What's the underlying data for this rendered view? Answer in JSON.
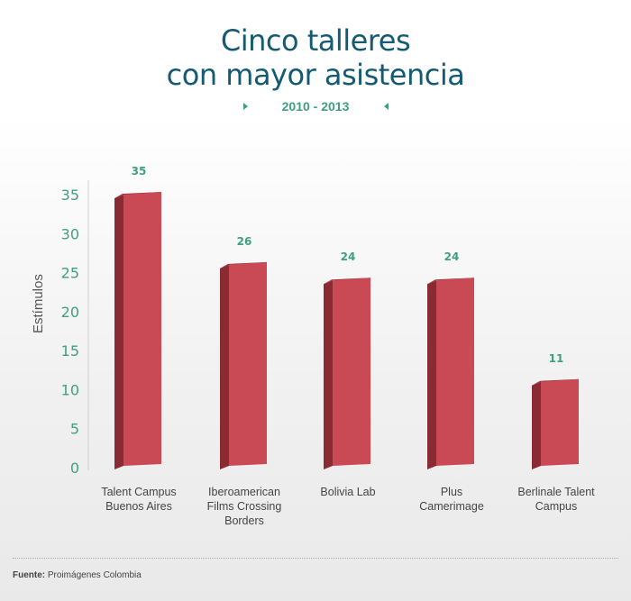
{
  "title_line1": "Cinco talleres",
  "title_line2": "con mayor asistencia",
  "subtitle": "2010 - 2013",
  "footer": {
    "label": "Fuente:",
    "source": "Proimágenes Colombia"
  },
  "colors": {
    "bar_front": "#c94a55",
    "bar_side": "#8a2a33",
    "bar_top": "#9e3440",
    "title": "#145a73",
    "accent": "#3ea07e"
  },
  "chart_data": {
    "type": "bar",
    "title": "",
    "ylabel": "Estímulos",
    "xlabel": "",
    "ylim": [
      0,
      35
    ],
    "yticks": [
      0,
      5,
      10,
      15,
      20,
      25,
      30,
      35
    ],
    "categories": [
      [
        "Talent Campus",
        "Buenos Aires"
      ],
      [
        "Iberoamerican",
        "Films Crossing",
        "Borders"
      ],
      [
        "Bolivia Lab"
      ],
      [
        "Plus",
        "Camerimage"
      ],
      [
        "Berlinale Talent",
        "Campus"
      ]
    ],
    "values": [
      35,
      26,
      24,
      24,
      11
    ],
    "data_labels": [
      "35",
      "26",
      "24",
      "24",
      "11"
    ],
    "grid": false,
    "legend": "none"
  }
}
